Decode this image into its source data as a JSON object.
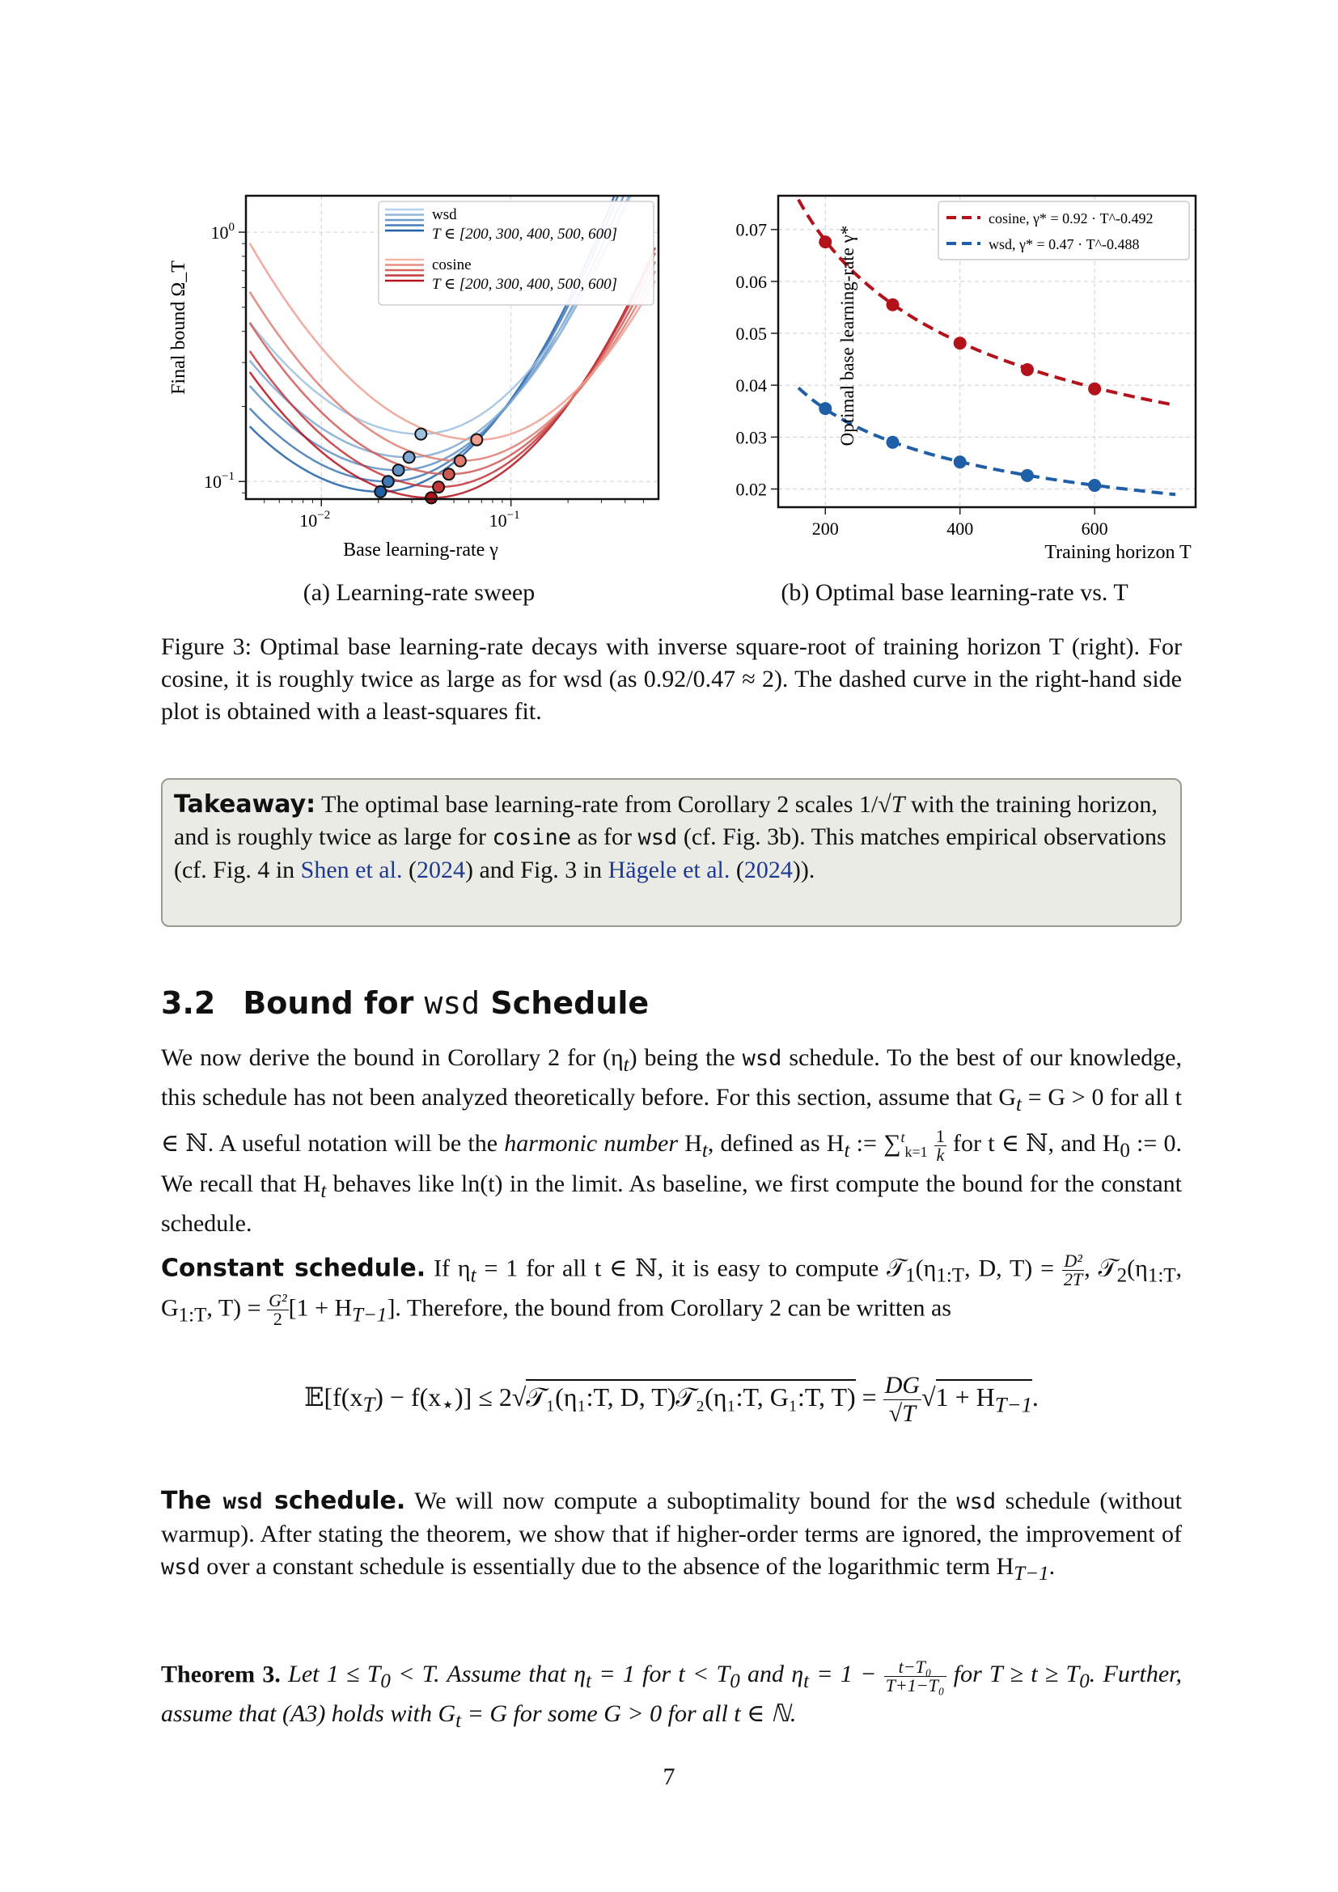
{
  "figure": {
    "subcaption_a": "(a) Learning-rate sweep",
    "subcaption_b": "(b) Optimal base learning-rate vs. T",
    "caption_label": "Figure 3:",
    "caption_text": "Optimal base learning-rate decays with inverse square-root of training horizon T (right). For cosine, it is roughly twice as large as for wsd (as 0.92/0.47 ≈ 2). The dashed curve in the right-hand side plot is obtained with a least-squares fit."
  },
  "colors": {
    "wsd_dark": "#1f5fa8",
    "wsd_light": "#b6d2ea",
    "cosine_dark": "#b3121b",
    "cosine_light": "#f8b6a2",
    "takeaway_bg": "#ebebe6",
    "link": "#1f3a93"
  },
  "chart_data": [
    {
      "type": "line",
      "xlabel": "Base learning-rate γ",
      "ylabel": "Final bound Ω_T",
      "xscale": "log",
      "yscale": "log",
      "xlim": [
        0.004,
        0.6
      ],
      "ylim": [
        0.085,
        1.4
      ],
      "x_ticks": [
        "10^-2",
        "10^-1"
      ],
      "y_ticks": [
        "10^0",
        "10^-1"
      ],
      "grid": true,
      "legend_position": "top-right",
      "legend": [
        {
          "name": "wsd",
          "sub": "T ∈ [200, 300, 400, 500, 600]"
        },
        {
          "name": "cosine",
          "sub": "T ∈ [200, 300, 400, 500, 600]"
        }
      ],
      "series": [
        {
          "name": "wsd",
          "T": 200,
          "gamma_opt": 0.0205,
          "min_bound": 0.091
        },
        {
          "name": "wsd",
          "T": 300,
          "gamma_opt": 0.0225,
          "min_bound": 0.1
        },
        {
          "name": "wsd",
          "T": 400,
          "gamma_opt": 0.0255,
          "min_bound": 0.111
        },
        {
          "name": "wsd",
          "T": 500,
          "gamma_opt": 0.029,
          "min_bound": 0.125
        },
        {
          "name": "wsd",
          "T": 600,
          "gamma_opt": 0.0335,
          "min_bound": 0.155
        },
        {
          "name": "cosine",
          "T": 200,
          "gamma_opt": 0.038,
          "min_bound": 0.086
        },
        {
          "name": "cosine",
          "T": 300,
          "gamma_opt": 0.0415,
          "min_bound": 0.095
        },
        {
          "name": "cosine",
          "T": 400,
          "gamma_opt": 0.047,
          "min_bound": 0.107
        },
        {
          "name": "cosine",
          "T": 500,
          "gamma_opt": 0.054,
          "min_bound": 0.121
        },
        {
          "name": "cosine",
          "T": 600,
          "gamma_opt": 0.066,
          "min_bound": 0.147
        }
      ]
    },
    {
      "type": "scatter",
      "xlabel": "Training horizon T",
      "ylabel": "Optimal base learning-rate γ*",
      "xlim": [
        130,
        750
      ],
      "ylim": [
        0.0165,
        0.0765
      ],
      "x_ticks": [
        200,
        400,
        600
      ],
      "y_ticks": [
        "0.02",
        "0.03",
        "0.04",
        "0.05",
        "0.06",
        "0.07"
      ],
      "grid": true,
      "legend_position": "top-right",
      "x": [
        200,
        300,
        400,
        500,
        600
      ],
      "series": [
        {
          "name": "cosine",
          "fit_label": "cosine, γ* = 0.92 · T^-0.492",
          "coef": 0.92,
          "exp": -0.492,
          "values": [
            0.0676,
            0.0555,
            0.0481,
            0.043,
            0.0393
          ]
        },
        {
          "name": "wsd",
          "fit_label": "wsd, γ* = 0.47 · T^-0.488",
          "coef": 0.47,
          "exp": -0.488,
          "values": [
            0.0355,
            0.029,
            0.0252,
            0.0226,
            0.0207
          ]
        }
      ]
    }
  ],
  "takeaway": {
    "label": "Takeaway:",
    "p1": " The optimal base learning-rate from Corollary 2 scales 1/",
    "sqrt_T": "√T",
    "p2": " with the training horizon, and is roughly twice as large for ",
    "cosine": "cosine",
    "p3": " as for ",
    "wsd": "wsd",
    "p4": " (cf. Fig. 3b). This matches empirical observations (cf. Fig. 4 in ",
    "ref1": "Shen et al.",
    "ref1_year": "2024",
    "p5": ") and Fig. 3 in ",
    "ref2": "Hägele et al.",
    "ref2_year": "2024",
    "p6": "))."
  },
  "section": {
    "number": "3.2",
    "title_a": "Bound for ",
    "title_code": "wsd",
    "title_b": " Schedule"
  },
  "para1": {
    "a": "We now derive the bound in Corollary 2 for (η",
    "a_sub": "t",
    "b": ") being the ",
    "code": "wsd",
    "c": " schedule. To the best of our knowledge, this schedule has not been analyzed theoretically before. For this section, assume that G",
    "c_sub": "t",
    "d": " = G > 0 for all t ∈ ℕ. A useful notation will be the ",
    "em": "harmonic number",
    "e": " H",
    "e_sub": "t",
    "f": ", defined as H",
    "f_sub": "t",
    "g": " := ∑",
    "g_sup": "t",
    "g_sub": "k=1",
    "frac_num": "1",
    "frac_den": "k",
    "h": " for t ∈ ℕ, and H",
    "h_sub": "0",
    "i": " := 0. We recall that H",
    "i_sub": "t",
    "j": " behaves like ln(t) in the limit. As baseline, we first compute the bound for the constant schedule."
  },
  "constant": {
    "heading": "Constant schedule.",
    "a": " If η",
    "a_sub": "t",
    "b": " = 1 for all t ∈ ℕ, it is easy to compute 𝒯",
    "b_sub": "1",
    "c": "(η",
    "c_sub": "1:T",
    "d": ", D, T) = ",
    "f1_num": "D²",
    "f1_den": "2T",
    "e": ", 𝒯",
    "e_sub": "2",
    "f": "(η",
    "f_sub": "1:T",
    "g": ", G",
    "g_sub": "1:T",
    "h": ", T) = ",
    "f2_num": "G²",
    "f2_den": "2",
    "i": "[1 + H",
    "i_sub": "T−1",
    "j": "]. Therefore, the bound from Corollary 2 can be written as"
  },
  "equation": {
    "lhs": "𝔼[f(x",
    "lhs_sub": "T",
    "lhs2": ") − f(x",
    "lhs2_sub": "⋆",
    "lhs3": ")] ≤ 2√",
    "rad": "𝒯₁(η₁:T, D, T)𝒯₂(η₁:T, G₁:T, T)",
    "eq": " = ",
    "num": "DG",
    "den": "√T",
    "rhs": "√",
    "rhs_rad": "1 + H",
    "rhs_sub": "T−1",
    "end": "."
  },
  "wsd_par": {
    "heading_a": "The ",
    "heading_code": "wsd",
    "heading_b": " schedule.",
    "a": " We will now compute a suboptimality bound for the ",
    "code1": "wsd",
    "b": " schedule (without warmup). After stating the theorem, we show that if higher-order terms are ignored, the improvement of ",
    "code2": "wsd",
    "c": " over a constant schedule is essentially due to the absence of the logarithmic term H",
    "c_sub": "T−1",
    "d": "."
  },
  "theorem": {
    "label": "Theorem 3.",
    "a": " Let 1 ≤ T",
    "a_sub": "0",
    "b": " < T. Assume that η",
    "b_sub": "t",
    "c": " = 1 for t < T",
    "c_sub": "0",
    "d": " and η",
    "d_sub": "t",
    "e": " = 1 − ",
    "f_num": "t−T₀",
    "f_den": "T+1−T₀",
    "g": " for T ≥ t ≥ T",
    "g_sub": "0",
    "h": ". Further, assume that (A3) holds with G",
    "h_sub": "t",
    "i": " = G for some G > 0 for all t ∈ ℕ."
  },
  "page_number": "7"
}
